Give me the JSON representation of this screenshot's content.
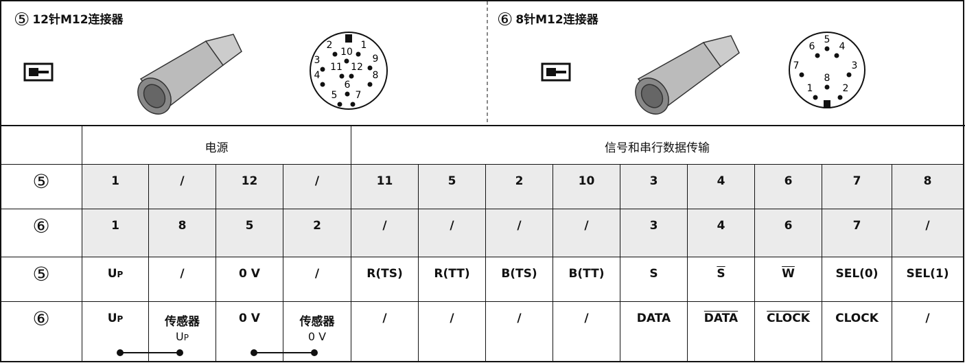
{
  "panels": [
    {
      "marker": "⑤",
      "title": "12针M12连接器",
      "pins": [
        "2",
        "10",
        "1",
        "3",
        "11",
        "12",
        "9",
        "4",
        "8",
        "6",
        "5",
        "7"
      ]
    },
    {
      "marker": "⑥",
      "title": "8针M12连接器",
      "pins": [
        "6",
        "5",
        "4",
        "7",
        "8",
        "3",
        "1",
        "2"
      ]
    }
  ],
  "table": {
    "header": {
      "power": "电源",
      "signal": "信号和串行数据传输"
    },
    "rows": [
      {
        "label": "⑤",
        "cells": [
          "1",
          "/",
          "12",
          "/",
          "11",
          "5",
          "2",
          "10",
          "3",
          "4",
          "6",
          "7",
          "8"
        ]
      },
      {
        "label": "⑥",
        "cells": [
          "1",
          "8",
          "5",
          "2",
          "/",
          "/",
          "/",
          "/",
          "3",
          "4",
          "6",
          "7",
          "/"
        ]
      },
      {
        "label": "⑤",
        "cells": [
          {
            "base": "U",
            "sub": "P"
          },
          "/",
          "0 V",
          "/",
          "R(TS)",
          "R(TT)",
          "B(TS)",
          "B(TT)",
          "S",
          {
            "text": "S",
            "overline": true
          },
          {
            "text": "W",
            "overline": true
          },
          "SEL(0)",
          "SEL(1)"
        ]
      },
      {
        "label": "⑥",
        "cells": [
          {
            "base": "U",
            "sub": "P"
          },
          {
            "text": "传感器",
            "below": {
              "base": "U",
              "sub": "P"
            }
          },
          "0 V",
          {
            "text": "传感器",
            "below": "0 V"
          },
          "/",
          "/",
          "/",
          "/",
          "DATA",
          {
            "text": "DATA",
            "overline": true
          },
          {
            "text": "CLOCK",
            "overline": true
          },
          "CLOCK",
          "/"
        ]
      }
    ]
  }
}
